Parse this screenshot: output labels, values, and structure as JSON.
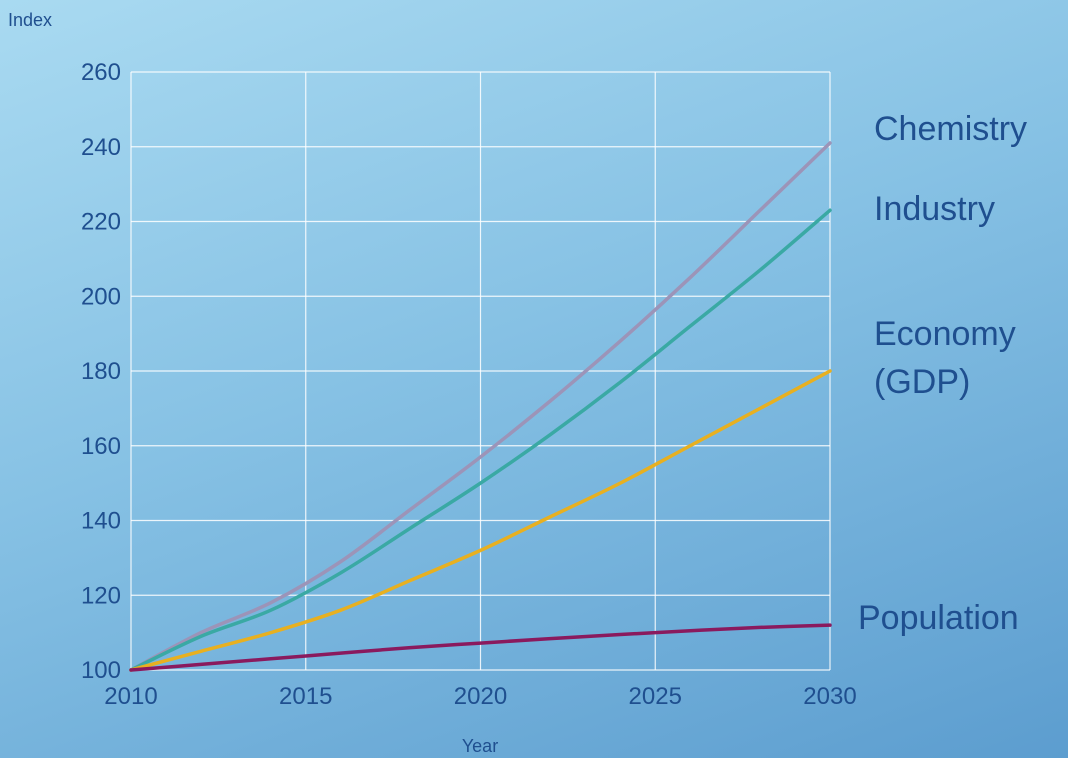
{
  "chart_data": {
    "type": "line",
    "title": "",
    "xlabel": "Year",
    "ylabel": "Index",
    "xlim": [
      2010,
      2030
    ],
    "ylim": [
      100,
      260
    ],
    "x_ticks": [
      "2010",
      "2015",
      "2020",
      "2025",
      "2030"
    ],
    "y_ticks": [
      "100",
      "120",
      "140",
      "160",
      "180",
      "200",
      "220",
      "240",
      "260"
    ],
    "grid": true,
    "legend": "labels at line ends",
    "x": [
      2010,
      2012,
      2014,
      2016,
      2018,
      2020,
      2022,
      2024,
      2026,
      2028,
      2030
    ],
    "series": [
      {
        "name": "Chemistry",
        "label_lines": [
          "Chemistry"
        ],
        "color": "#9c94b8",
        "values": [
          100,
          110,
          118,
          129,
          143,
          157,
          172,
          188,
          205,
          223,
          241
        ]
      },
      {
        "name": "Industry",
        "label_lines": [
          "Industry"
        ],
        "color": "#3aa9a4",
        "values": [
          100,
          109,
          116,
          126,
          138,
          150,
          163,
          177,
          192,
          207,
          223
        ]
      },
      {
        "name": "Economy (GDP)",
        "label_lines": [
          "Economy",
          "(GDP)"
        ],
        "color": "#e8b020",
        "values": [
          100,
          105,
          110,
          116,
          124,
          132,
          141,
          150,
          160,
          170,
          180
        ]
      },
      {
        "name": "Population",
        "label_lines": [
          "Population"
        ],
        "color": "#8a1a5e",
        "values": [
          100,
          101.5,
          103,
          104.5,
          106,
          107.2,
          108.4,
          109.5,
          110.5,
          111.4,
          112
        ]
      }
    ]
  }
}
